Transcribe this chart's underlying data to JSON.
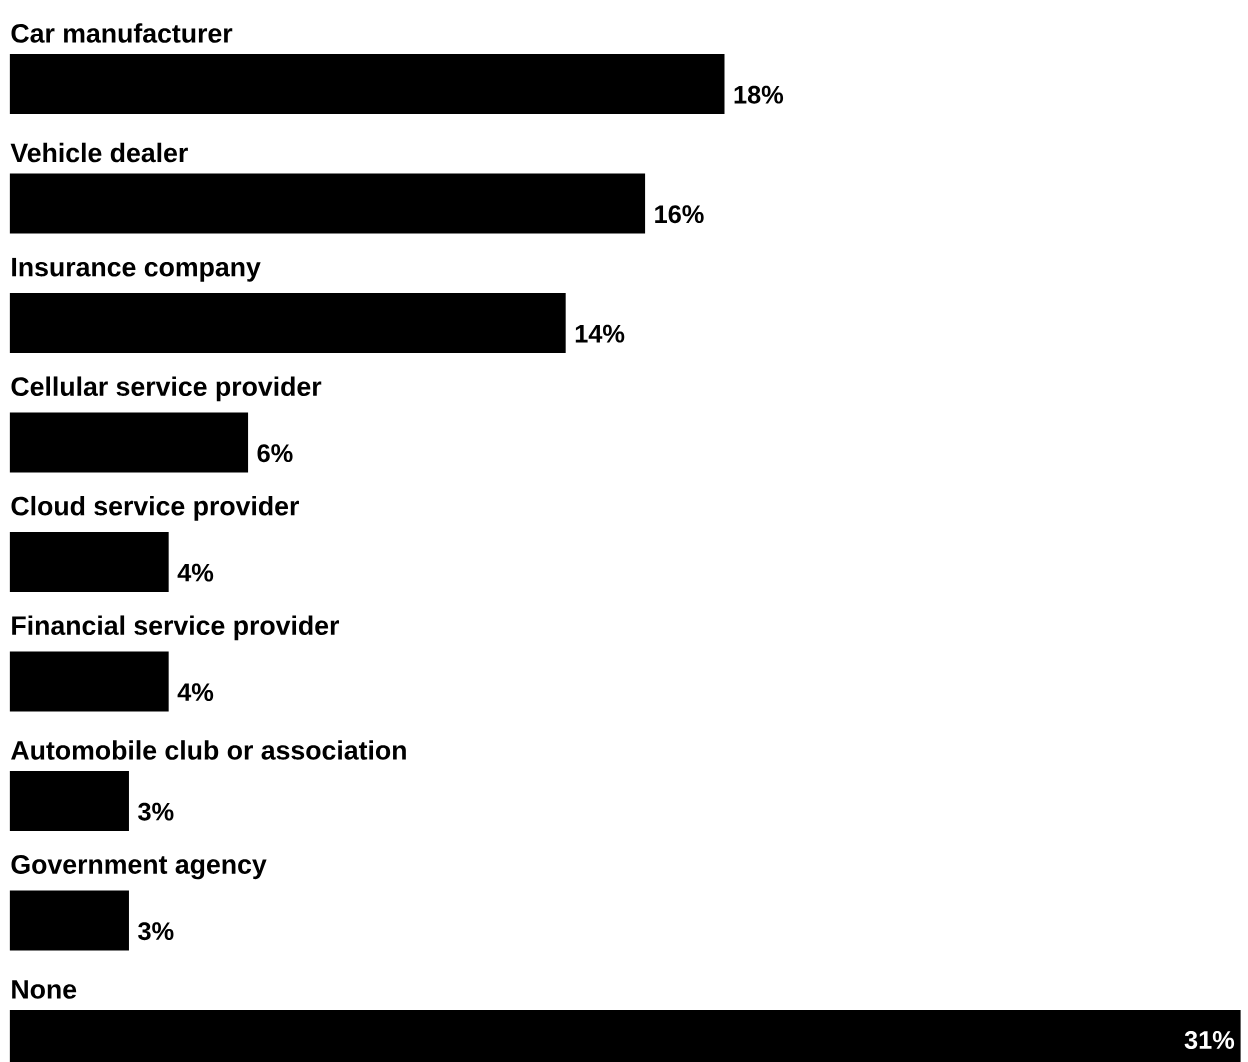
{
  "chart_data": {
    "type": "bar",
    "orientation": "horizontal",
    "categories": [
      "Car manufacturer",
      "Vehicle dealer",
      "Insurance company",
      "Cellular service provider",
      "Cloud service provider",
      "Financial service provider",
      "Automobile club or association",
      "Government agency",
      "None"
    ],
    "values": [
      18,
      16,
      14,
      6,
      4,
      4,
      3,
      3,
      31
    ],
    "value_labels": [
      "18%",
      "16%",
      "14%",
      "6%",
      "4%",
      "4%",
      "3%",
      "3%",
      "31%"
    ],
    "color": "#000000"
  }
}
